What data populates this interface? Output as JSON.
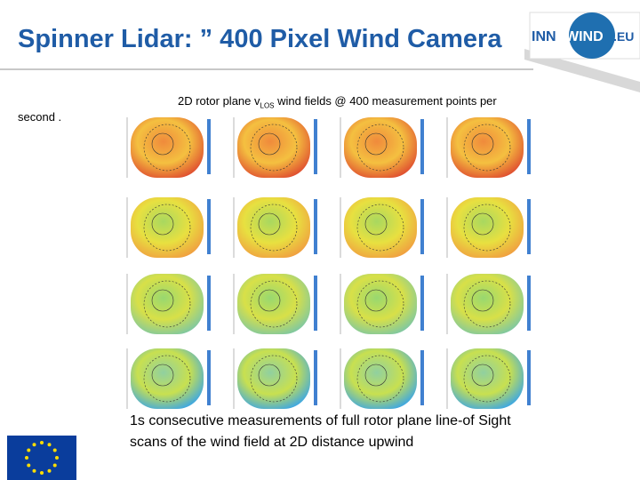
{
  "header": {
    "title": "Spinner Lidar: ” 400 Pixel Wind Camera"
  },
  "logo": {
    "parts": [
      "INN",
      "WIND",
      ".EU"
    ]
  },
  "caption": {
    "parts": [
      "2D rotor plane v",
      "LOS",
      " wind fields @ 400 measurement points per",
      "second ."
    ]
  },
  "footer": {
    "lines": [
      "1s consecutive measurements of full rotor plane line-of Sight",
      "scans of the wind field  at 2D distance upwind"
    ]
  }
}
